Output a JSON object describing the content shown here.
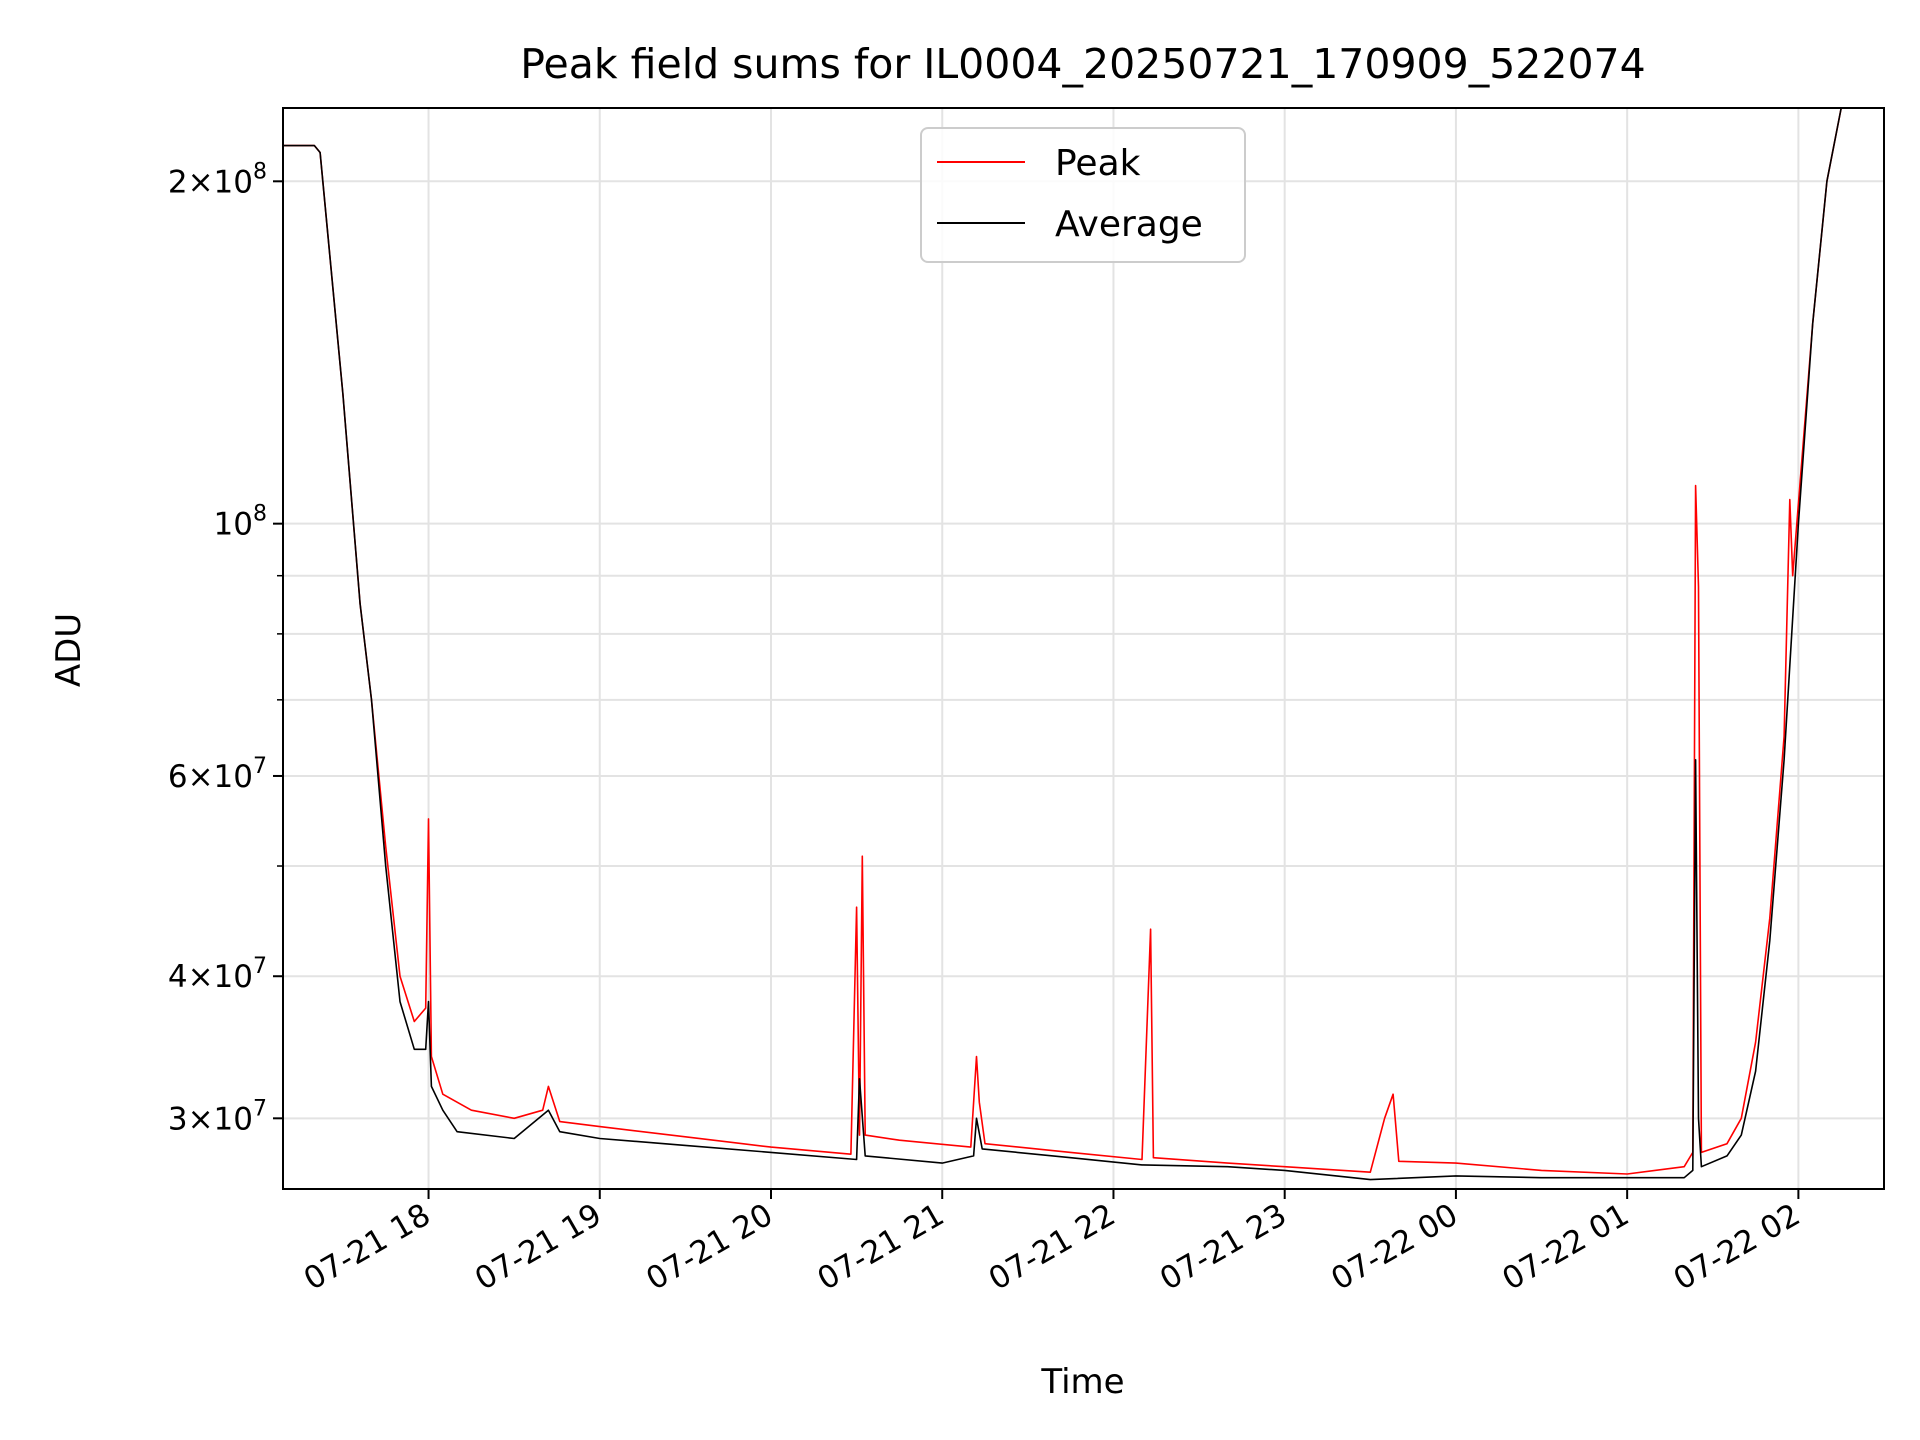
{
  "chart_data": {
    "type": "line",
    "title": "Peak field sums for IL0004_20250721_170909_522074",
    "xlabel": "Time",
    "ylabel": "ADU",
    "x_axis": {
      "kind": "datetime",
      "range": [
        "2025-07-21 17:09",
        "2025-07-22 02:30"
      ],
      "ticks": [
        {
          "x": "2025-07-21 18:00",
          "label": "07-21 18"
        },
        {
          "x": "2025-07-21 19:00",
          "label": "07-21 19"
        },
        {
          "x": "2025-07-21 20:00",
          "label": "07-21 20"
        },
        {
          "x": "2025-07-21 21:00",
          "label": "07-21 21"
        },
        {
          "x": "2025-07-21 22:00",
          "label": "07-21 22"
        },
        {
          "x": "2025-07-21 23:00",
          "label": "07-21 23"
        },
        {
          "x": "2025-07-22 00:00",
          "label": "07-22 00"
        },
        {
          "x": "2025-07-22 01:00",
          "label": "07-22 01"
        },
        {
          "x": "2025-07-22 02:00",
          "label": "07-22 02"
        }
      ]
    },
    "y_axis": {
      "scale": "log",
      "range": [
        26000000,
        232000000
      ],
      "major_ticks": [
        {
          "value": 30000000,
          "mant": "3",
          "exp": "7"
        },
        {
          "value": 40000000,
          "mant": "4",
          "exp": "7"
        },
        {
          "value": 60000000,
          "mant": "6",
          "exp": "7"
        },
        {
          "value": 100000000,
          "mant": "",
          "exp": "8"
        },
        {
          "value": 200000000,
          "mant": "2",
          "exp": "8"
        }
      ],
      "minor_ticks": [
        50000000,
        70000000,
        80000000,
        90000000
      ]
    },
    "grid": true,
    "legend_position": "upper-center",
    "series": [
      {
        "name": "Peak",
        "color": "#ff0000",
        "points": [
          [
            "2025-07-21 17:09",
            215000000
          ],
          [
            "2025-07-21 17:20",
            215000000
          ],
          [
            "2025-07-21 17:22",
            212000000
          ],
          [
            "2025-07-21 17:30",
            130000000
          ],
          [
            "2025-07-21 17:36",
            85000000
          ],
          [
            "2025-07-21 17:40",
            70000000
          ],
          [
            "2025-07-21 17:45",
            52000000
          ],
          [
            "2025-07-21 17:50",
            40000000
          ],
          [
            "2025-07-21 17:55",
            36500000
          ],
          [
            "2025-07-21 17:59",
            37500000
          ],
          [
            "2025-07-21 18:00",
            55000000
          ],
          [
            "2025-07-21 18:01",
            34000000
          ],
          [
            "2025-07-21 18:05",
            31500000
          ],
          [
            "2025-07-21 18:15",
            30500000
          ],
          [
            "2025-07-21 18:30",
            30000000
          ],
          [
            "2025-07-21 18:40",
            30500000
          ],
          [
            "2025-07-21 18:42",
            32000000
          ],
          [
            "2025-07-21 18:46",
            29800000
          ],
          [
            "2025-07-21 19:00",
            29500000
          ],
          [
            "2025-07-21 19:30",
            28900000
          ],
          [
            "2025-07-21 20:00",
            28300000
          ],
          [
            "2025-07-21 20:28",
            27900000
          ],
          [
            "2025-07-21 20:30",
            46000000
          ],
          [
            "2025-07-21 20:31",
            29000000
          ],
          [
            "2025-07-21 20:32",
            51000000
          ],
          [
            "2025-07-21 20:33",
            29000000
          ],
          [
            "2025-07-21 20:45",
            28700000
          ],
          [
            "2025-07-21 21:10",
            28300000
          ],
          [
            "2025-07-21 21:12",
            34000000
          ],
          [
            "2025-07-21 21:13",
            31000000
          ],
          [
            "2025-07-21 21:15",
            28500000
          ],
          [
            "2025-07-21 21:45",
            28000000
          ],
          [
            "2025-07-21 22:10",
            27600000
          ],
          [
            "2025-07-21 22:13",
            44000000
          ],
          [
            "2025-07-21 22:14",
            27700000
          ],
          [
            "2025-07-21 22:40",
            27400000
          ],
          [
            "2025-07-21 23:00",
            27200000
          ],
          [
            "2025-07-21 23:30",
            26900000
          ],
          [
            "2025-07-21 23:35",
            30000000
          ],
          [
            "2025-07-21 23:38",
            31500000
          ],
          [
            "2025-07-21 23:40",
            27500000
          ],
          [
            "2025-07-22 00:00",
            27400000
          ],
          [
            "2025-07-22 00:30",
            27000000
          ],
          [
            "2025-07-22 01:00",
            26800000
          ],
          [
            "2025-07-22 01:20",
            27200000
          ],
          [
            "2025-07-22 01:23",
            28000000
          ],
          [
            "2025-07-22 01:24",
            108000000
          ],
          [
            "2025-07-22 01:25",
            88000000
          ],
          [
            "2025-07-22 01:26",
            28000000
          ],
          [
            "2025-07-22 01:35",
            28500000
          ],
          [
            "2025-07-22 01:40",
            30000000
          ],
          [
            "2025-07-22 01:45",
            35000000
          ],
          [
            "2025-07-22 01:50",
            45000000
          ],
          [
            "2025-07-22 01:55",
            65000000
          ],
          [
            "2025-07-22 01:57",
            105000000
          ],
          [
            "2025-07-22 01:58",
            90000000
          ],
          [
            "2025-07-22 02:05",
            150000000
          ],
          [
            "2025-07-22 02:10",
            200000000
          ],
          [
            "2025-07-22 02:15",
            232000000
          ],
          [
            "2025-07-22 02:30",
            232000000
          ]
        ]
      },
      {
        "name": "Average",
        "color": "#000000",
        "points": [
          [
            "2025-07-21 17:09",
            215000000
          ],
          [
            "2025-07-21 17:20",
            215000000
          ],
          [
            "2025-07-21 17:22",
            212000000
          ],
          [
            "2025-07-21 17:30",
            130000000
          ],
          [
            "2025-07-21 17:36",
            85000000
          ],
          [
            "2025-07-21 17:40",
            70000000
          ],
          [
            "2025-07-21 17:45",
            50000000
          ],
          [
            "2025-07-21 17:50",
            38000000
          ],
          [
            "2025-07-21 17:55",
            34500000
          ],
          [
            "2025-07-21 17:59",
            34500000
          ],
          [
            "2025-07-21 18:00",
            38000000
          ],
          [
            "2025-07-21 18:01",
            32000000
          ],
          [
            "2025-07-21 18:05",
            30500000
          ],
          [
            "2025-07-21 18:10",
            29200000
          ],
          [
            "2025-07-21 18:30",
            28800000
          ],
          [
            "2025-07-21 18:42",
            30500000
          ],
          [
            "2025-07-21 18:46",
            29200000
          ],
          [
            "2025-07-21 19:00",
            28800000
          ],
          [
            "2025-07-21 19:30",
            28400000
          ],
          [
            "2025-07-21 20:00",
            28000000
          ],
          [
            "2025-07-21 20:30",
            27600000
          ],
          [
            "2025-07-21 20:31",
            32500000
          ],
          [
            "2025-07-21 20:33",
            27800000
          ],
          [
            "2025-07-21 21:00",
            27400000
          ],
          [
            "2025-07-21 21:11",
            27800000
          ],
          [
            "2025-07-21 21:12",
            30000000
          ],
          [
            "2025-07-21 21:14",
            28200000
          ],
          [
            "2025-07-21 21:45",
            27700000
          ],
          [
            "2025-07-21 22:10",
            27300000
          ],
          [
            "2025-07-21 22:40",
            27200000
          ],
          [
            "2025-07-21 23:00",
            27000000
          ],
          [
            "2025-07-21 23:30",
            26500000
          ],
          [
            "2025-07-22 00:00",
            26700000
          ],
          [
            "2025-07-22 00:30",
            26600000
          ],
          [
            "2025-07-22 01:00",
            26600000
          ],
          [
            "2025-07-22 01:20",
            26600000
          ],
          [
            "2025-07-22 01:23",
            27000000
          ],
          [
            "2025-07-22 01:24",
            62000000
          ],
          [
            "2025-07-22 01:25",
            30000000
          ],
          [
            "2025-07-22 01:26",
            27200000
          ],
          [
            "2025-07-22 01:35",
            27800000
          ],
          [
            "2025-07-22 01:40",
            29000000
          ],
          [
            "2025-07-22 01:45",
            33000000
          ],
          [
            "2025-07-22 01:50",
            43000000
          ],
          [
            "2025-07-22 01:55",
            62000000
          ],
          [
            "2025-07-22 02:00",
            100000000
          ],
          [
            "2025-07-22 02:05",
            150000000
          ],
          [
            "2025-07-22 02:10",
            200000000
          ],
          [
            "2025-07-22 02:15",
            232000000
          ],
          [
            "2025-07-22 02:30",
            232000000
          ]
        ]
      }
    ]
  }
}
